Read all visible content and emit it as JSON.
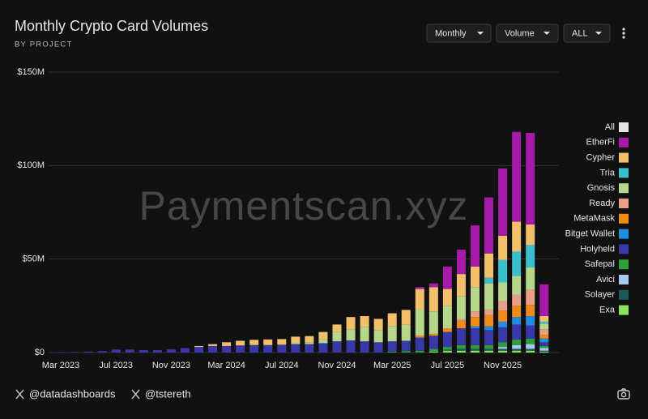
{
  "header": {
    "title": "Monthly Crypto Card Volumes",
    "subtitle": "BY PROJECT",
    "controls": [
      "Monthly",
      "Volume",
      "ALL"
    ]
  },
  "footer": {
    "accounts": [
      "@datadashboards",
      "@tstereth"
    ]
  },
  "watermark": "Paymentscan.xyz",
  "chart_data": {
    "type": "stacked_bar",
    "categories": [
      "Mar 2023",
      null,
      null,
      null,
      "Jul 2023",
      null,
      null,
      null,
      "Nov 2023",
      null,
      null,
      null,
      "Mar 2024",
      null,
      null,
      null,
      "Jul 2024",
      null,
      null,
      null,
      "Nov 2024",
      null,
      null,
      null,
      "Mar 2025",
      null,
      null,
      null,
      "Jul 2025",
      null,
      null,
      null,
      "Nov 2025",
      null,
      null,
      null
    ],
    "ylim": [
      0,
      150
    ],
    "yticks": [
      {
        "value": 0,
        "label": "$0"
      },
      {
        "value": 50,
        "label": "$50M"
      },
      {
        "value": 100,
        "label": "$100M"
      },
      {
        "value": 150,
        "label": "$150M"
      }
    ],
    "grid": true,
    "legend": "right",
    "series": [
      {
        "name": "All",
        "color": "#e6e6e6",
        "values": [
          null,
          null,
          null,
          null,
          null,
          null,
          null,
          null,
          null,
          null,
          null,
          null,
          null,
          null,
          null,
          null,
          null,
          null,
          null,
          null,
          null,
          null,
          null,
          null,
          null,
          null,
          null,
          null,
          null,
          null,
          null,
          null,
          null,
          null,
          null,
          null
        ]
      },
      {
        "name": "EtherFi",
        "color": "#a51ba8",
        "values": [
          0,
          0,
          0,
          0,
          0,
          0,
          0,
          0,
          0,
          0,
          0,
          0,
          0,
          0,
          0,
          0,
          0,
          0,
          0,
          0,
          0,
          0,
          0,
          0,
          0,
          0,
          1,
          2,
          12,
          13,
          22,
          30,
          36,
          48,
          49,
          17
        ]
      },
      {
        "name": "Cypher",
        "color": "#f2c06b",
        "values": [
          0,
          0,
          0,
          0,
          0,
          0,
          0,
          0,
          0,
          0,
          0.5,
          1,
          2,
          2.5,
          2.8,
          3,
          3,
          3.5,
          3.5,
          4,
          4,
          6.5,
          6,
          6,
          7,
          8,
          11,
          13,
          9,
          12,
          11,
          13,
          13,
          16,
          11,
          3
        ]
      },
      {
        "name": "Tria",
        "color": "#3cbfcc",
        "values": [
          0,
          0,
          0,
          0,
          0,
          0,
          0,
          0,
          0,
          0,
          0,
          0,
          0,
          0,
          0,
          0,
          0,
          0,
          0,
          0,
          0,
          0,
          0,
          0,
          0,
          0,
          0,
          0,
          0,
          0,
          0,
          3,
          12,
          13,
          12,
          1
        ]
      },
      {
        "name": "Gnosis",
        "color": "#b6d68c",
        "values": [
          0,
          0,
          0,
          0,
          0,
          0,
          0,
          0,
          0,
          0,
          0,
          0,
          0,
          0,
          0,
          0,
          0,
          0.5,
          0.8,
          2,
          5,
          6,
          7.5,
          6.5,
          8,
          8.5,
          14,
          12,
          12,
          12,
          13,
          14,
          10,
          10,
          12,
          3
        ]
      },
      {
        "name": "Ready",
        "color": "#e89e88",
        "values": [
          0,
          0,
          0,
          0,
          0,
          0,
          0,
          0,
          0,
          0,
          0,
          0,
          0,
          0,
          0,
          0,
          0,
          0,
          0,
          0,
          0,
          0,
          0,
          0,
          0,
          0,
          0,
          0,
          0,
          1,
          3,
          3,
          5,
          6,
          8,
          3
        ]
      },
      {
        "name": "MetaMask",
        "color": "#f08a18",
        "values": [
          0,
          0,
          0,
          0,
          0,
          0,
          0,
          0,
          0,
          0,
          0,
          0,
          0,
          0,
          0,
          0,
          0,
          0,
          0,
          0,
          0,
          0,
          0,
          0,
          0,
          0,
          1,
          1,
          2,
          4,
          5,
          6,
          6,
          6,
          6,
          2
        ]
      },
      {
        "name": "Bitget Wallet",
        "color": "#1f8ee0",
        "values": [
          0,
          0,
          0,
          0,
          0,
          0,
          0,
          0,
          0,
          0,
          0,
          0,
          0,
          0,
          0,
          0,
          0,
          0,
          0,
          0,
          0,
          0,
          0,
          0,
          0,
          0,
          0,
          0,
          0,
          0,
          1,
          2,
          3,
          4,
          5,
          2
        ]
      },
      {
        "name": "Holyheld",
        "color": "#3838a8",
        "values": [
          0.2,
          0.3,
          0.5,
          0.8,
          1.6,
          1.6,
          1.3,
          1.3,
          1.7,
          2.4,
          3,
          3.5,
          3.5,
          3.8,
          4,
          4,
          4.2,
          4.5,
          4.5,
          5,
          6,
          6.5,
          6,
          5.5,
          5.5,
          5.5,
          7,
          7,
          8,
          9,
          9,
          8,
          8,
          8,
          7,
          2
        ]
      },
      {
        "name": "Safepal",
        "color": "#2e9e3a",
        "values": [
          0,
          0,
          0,
          0,
          0,
          0,
          0,
          0,
          0,
          0,
          0,
          0,
          0,
          0,
          0,
          0,
          0,
          0,
          0,
          0,
          0,
          0,
          0,
          0,
          0.5,
          0.8,
          1,
          1.5,
          1.5,
          2,
          2,
          2,
          2.5,
          3,
          3,
          1
        ]
      },
      {
        "name": "Avici",
        "color": "#a8c8f4",
        "values": [
          0,
          0,
          0,
          0,
          0,
          0,
          0,
          0,
          0,
          0,
          0,
          0,
          0,
          0,
          0,
          0,
          0,
          0,
          0,
          0,
          0,
          0,
          0,
          0,
          0,
          0,
          0,
          0,
          0,
          0,
          0,
          0,
          1,
          2,
          2.5,
          1.5
        ]
      },
      {
        "name": "Solayer",
        "color": "#1c5a58",
        "values": [
          0,
          0,
          0,
          0,
          0,
          0,
          0,
          0,
          0,
          0,
          0,
          0,
          0,
          0,
          0,
          0,
          0,
          0,
          0,
          0,
          0,
          0,
          0,
          0,
          0,
          0,
          0,
          0,
          0.5,
          1,
          1,
          1,
          1,
          1,
          1,
          0.5
        ]
      },
      {
        "name": "Exa",
        "color": "#8ee05e",
        "values": [
          0,
          0,
          0,
          0,
          0,
          0,
          0,
          0,
          0,
          0,
          0,
          0,
          0,
          0,
          0,
          0,
          0,
          0,
          0,
          0,
          0,
          0,
          0,
          0,
          0,
          0,
          0,
          0.5,
          1,
          1,
          1,
          1,
          1,
          1,
          1,
          0.5
        ]
      }
    ]
  }
}
